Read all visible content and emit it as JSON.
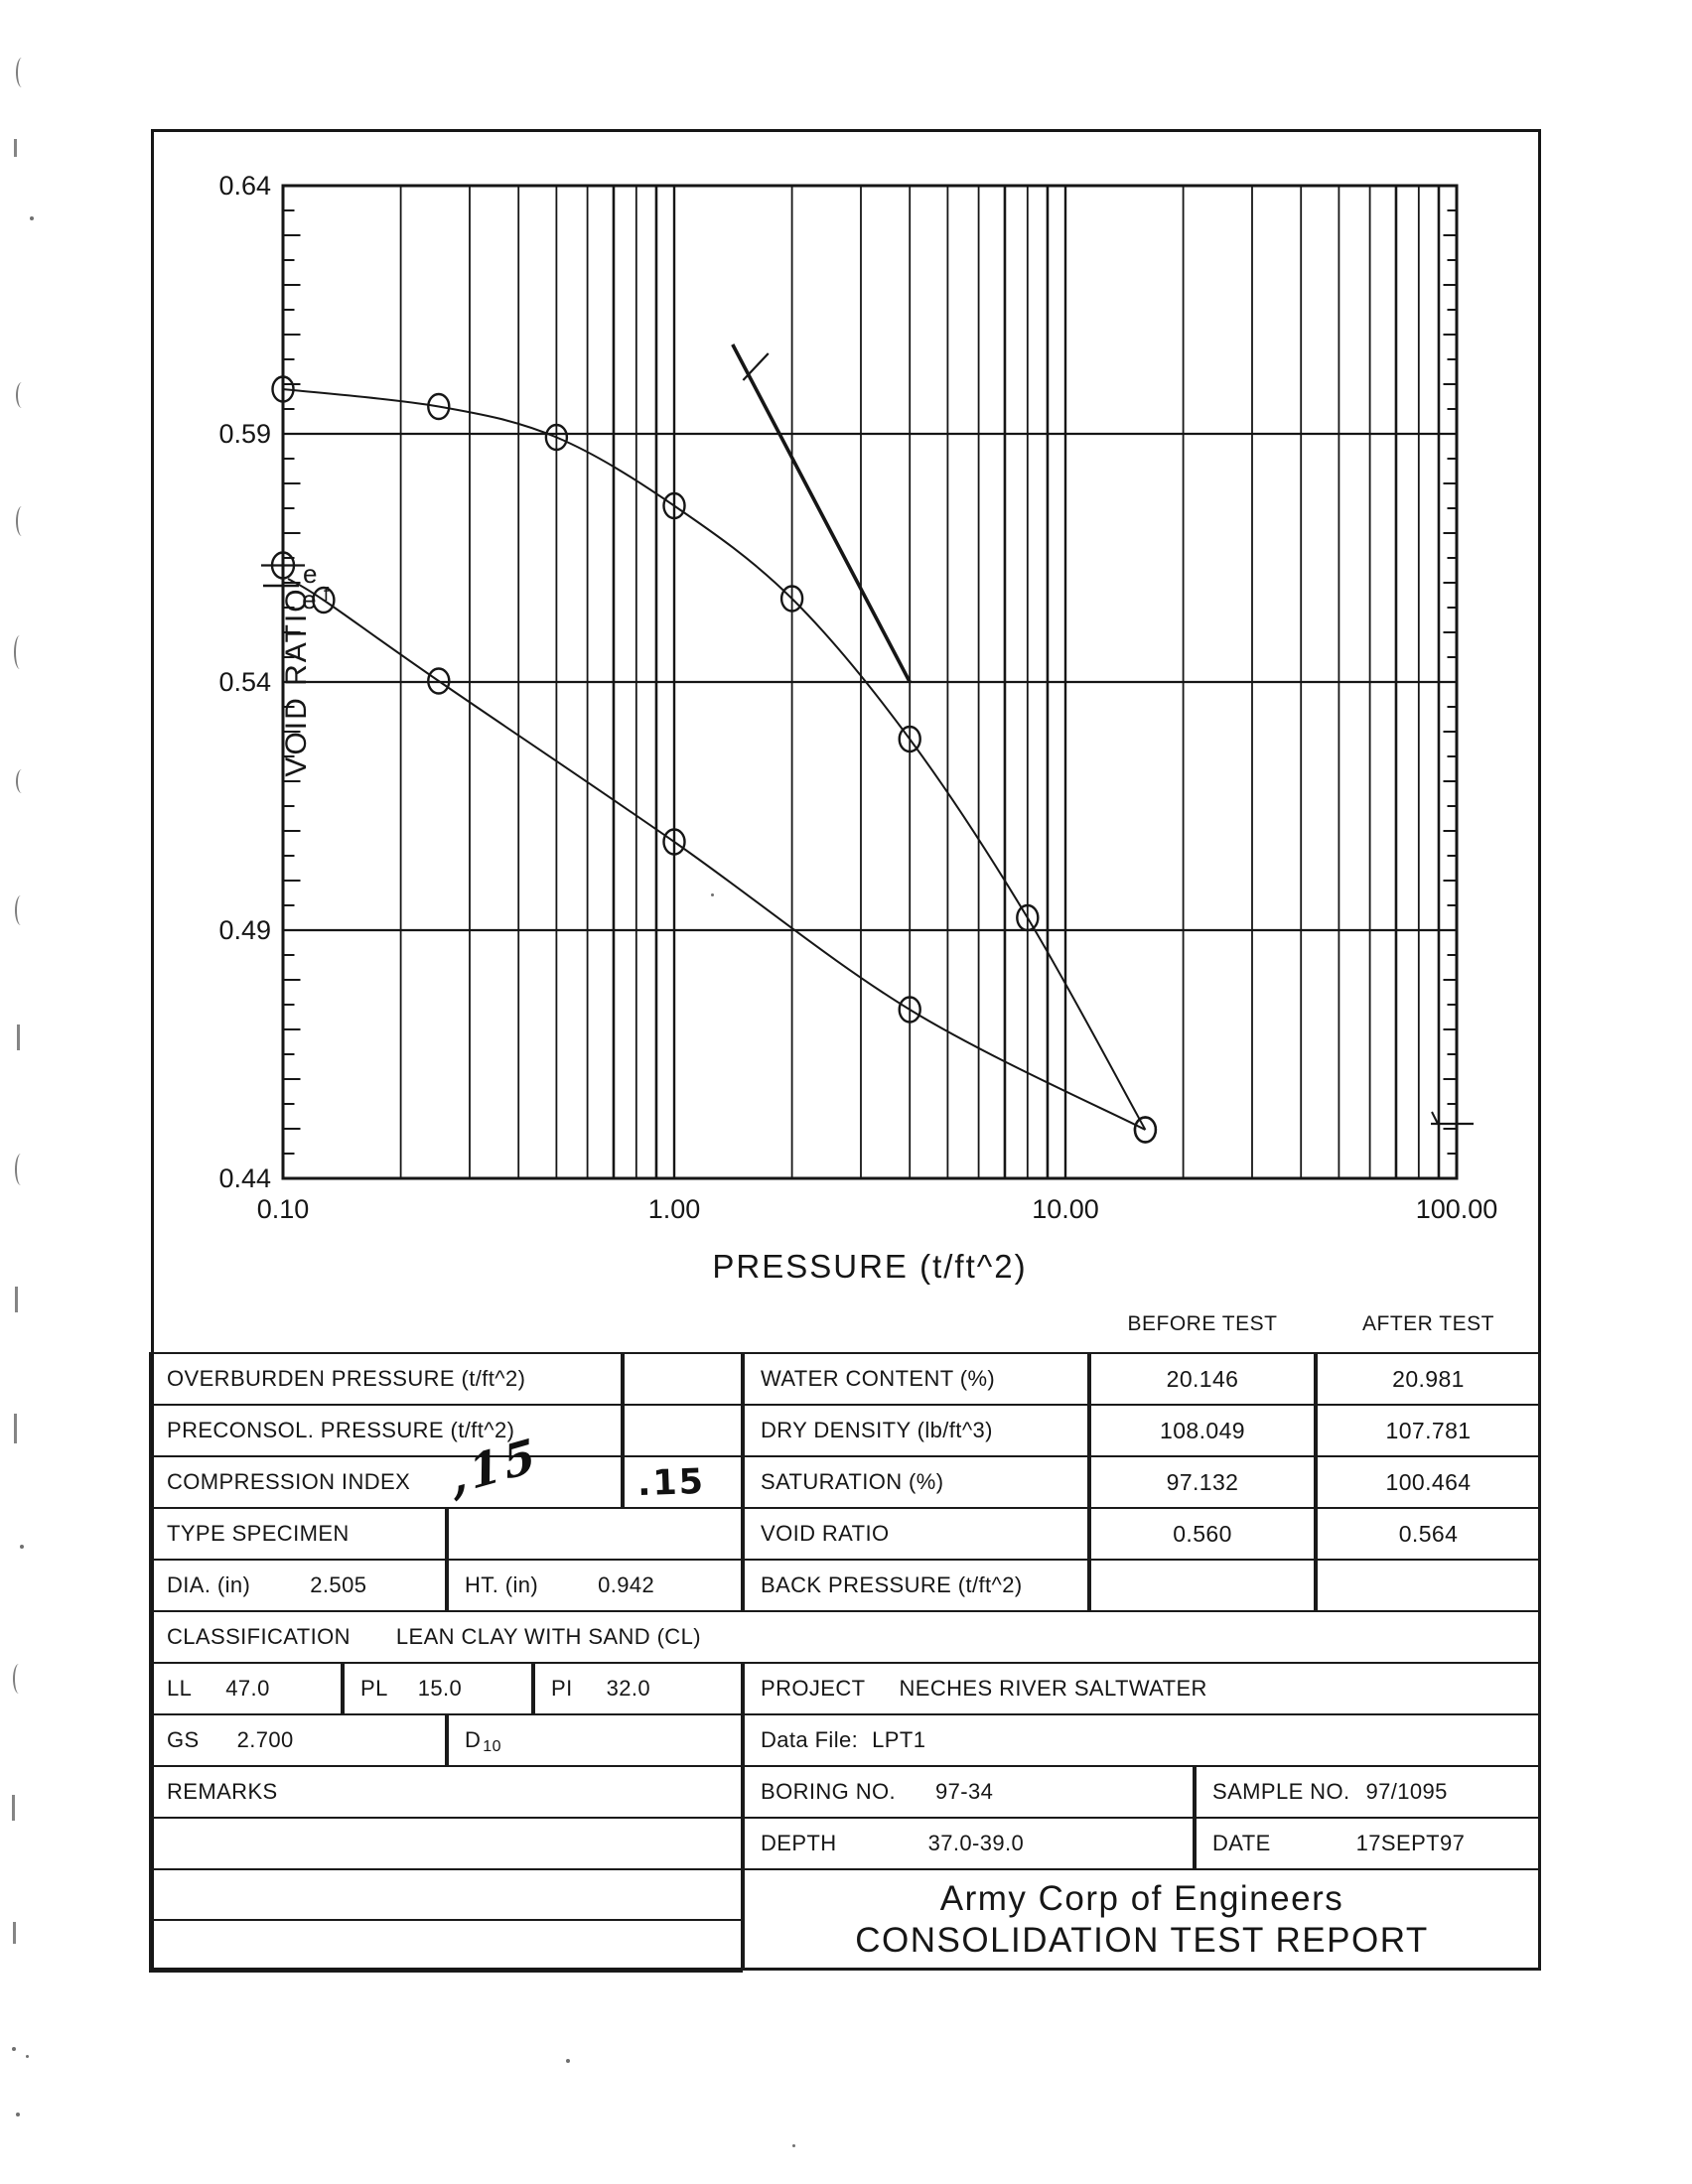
{
  "report": {
    "title_line1": "Army Corp of Engineers",
    "title_line2": "CONSOLIDATION TEST REPORT"
  },
  "header": {
    "before_test": "BEFORE TEST",
    "after_test": "AFTER TEST"
  },
  "chart_data": {
    "type": "line",
    "xlabel": "PRESSURE (t/ft^2)",
    "ylabel": "VOID RATIO",
    "x_scale": "log",
    "xlim": [
      0.1,
      100
    ],
    "ylim": [
      0.44,
      0.64
    ],
    "grid": "log-x minor gridlines on, y gridlines every 0.05",
    "x_ticks": [
      {
        "value": 0.1,
        "label": "0.10"
      },
      {
        "value": 1,
        "label": "1.00"
      },
      {
        "value": 10,
        "label": "10.00"
      },
      {
        "value": 100,
        "label": "100.00"
      }
    ],
    "y_ticks": [
      {
        "value": 0.64,
        "label": "0.64"
      },
      {
        "value": 0.59,
        "label": "0.59"
      },
      {
        "value": 0.54,
        "label": "0.54"
      },
      {
        "value": 0.49,
        "label": "0.49"
      },
      {
        "value": 0.44,
        "label": "0.44"
      }
    ],
    "y_gridlines": [
      0.59,
      0.54,
      0.49
    ],
    "series": [
      {
        "name": "compression-curve",
        "marker": "circle",
        "points": [
          [
            0.1,
            0.599
          ],
          [
            0.25,
            0.5955
          ],
          [
            0.5,
            0.5893
          ],
          [
            1.0,
            0.5755
          ],
          [
            2.0,
            0.5568
          ],
          [
            4.0,
            0.5285
          ],
          [
            8.0,
            0.4925
          ],
          [
            16.0,
            0.4498
          ]
        ]
      },
      {
        "name": "rebound-curve",
        "marker": "circle",
        "lead_point": [
          0.103,
          0.5608
        ],
        "points": [
          [
            0.127,
            0.5565
          ],
          [
            0.25,
            0.5402
          ],
          [
            1.0,
            0.5078
          ],
          [
            4.0,
            0.474
          ],
          [
            16.0,
            0.4498
          ]
        ]
      }
    ],
    "cc_fit_line": {
      "from": [
        1.41,
        0.608
      ],
      "to": [
        4.0,
        0.54
      ],
      "tick_from": [
        1.5,
        0.6008
      ],
      "tick_to": [
        1.74,
        0.6062
      ],
      "implied_compression_index": 0.15
    },
    "ef_annotation": {
      "circle_plus_marker": [
        0.1,
        0.5635
      ],
      "dash_marker": [
        0.1,
        0.5594
      ],
      "labels": [
        {
          "t": "e",
          "x": 0.1124,
          "y": 0.5618,
          "size": 26
        },
        {
          "t": "e",
          "x": 0.1118,
          "y": 0.5566,
          "size": 26
        },
        {
          "t": "f",
          "x": 0.127,
          "y": 0.5582,
          "size": 19
        }
      ]
    },
    "right_edge_mark_y": 0.451
  },
  "table": {
    "overburden": {
      "label": "OVERBURDEN PRESSURE (t/ft^2)"
    },
    "preconsol": {
      "label": "PRECONSOL. PRESSURE  (t/ft^2)"
    },
    "compression": {
      "label": "COMPRESSION INDEX",
      "scrawl": ",15",
      "box_value": ".15"
    },
    "type_specimen": {
      "label": "TYPE SPECIMEN"
    },
    "dia": {
      "label": "DIA. (in)",
      "value": "2.505"
    },
    "ht": {
      "label": "HT. (in)",
      "value": "0.942"
    },
    "classification": {
      "label": "CLASSIFICATION",
      "value": "LEAN CLAY WITH SAND (CL)"
    },
    "ll": {
      "label": "LL",
      "value": "47.0"
    },
    "pl": {
      "label": "PL",
      "value": "15.0"
    },
    "pi": {
      "label": "PI",
      "value": "32.0"
    },
    "project": {
      "label": "PROJECT",
      "value": "NECHES RIVER SALTWATER"
    },
    "gs": {
      "label": "GS",
      "value": "2.700"
    },
    "d10": {
      "base": "D",
      "sub": "10"
    },
    "data_file": {
      "label": "Data File:",
      "value": "LPT1"
    },
    "remarks": {
      "label": "REMARKS"
    },
    "boring": {
      "label": "BORING NO.",
      "value": "97-34"
    },
    "sample": {
      "label": "SAMPLE NO.",
      "value": "97/1095"
    },
    "depth": {
      "label": "DEPTH",
      "value": "37.0-39.0"
    },
    "date": {
      "label": "DATE",
      "value": "17SEPT97"
    },
    "right": {
      "water": {
        "label": "WATER CONTENT (%)",
        "before": "20.146",
        "after": "20.981"
      },
      "dry": {
        "label": "DRY DENSITY  (lb/ft^3)",
        "before": "108.049",
        "after": "107.781"
      },
      "sat": {
        "label": "SATURATION (%)",
        "before": "97.132",
        "after": "100.464"
      },
      "void": {
        "label": "VOID RATIO",
        "before": "0.560",
        "after": "0.564"
      },
      "back": {
        "label": "BACK PRESSURE (t/ft^2)",
        "before": "",
        "after": ""
      }
    }
  }
}
